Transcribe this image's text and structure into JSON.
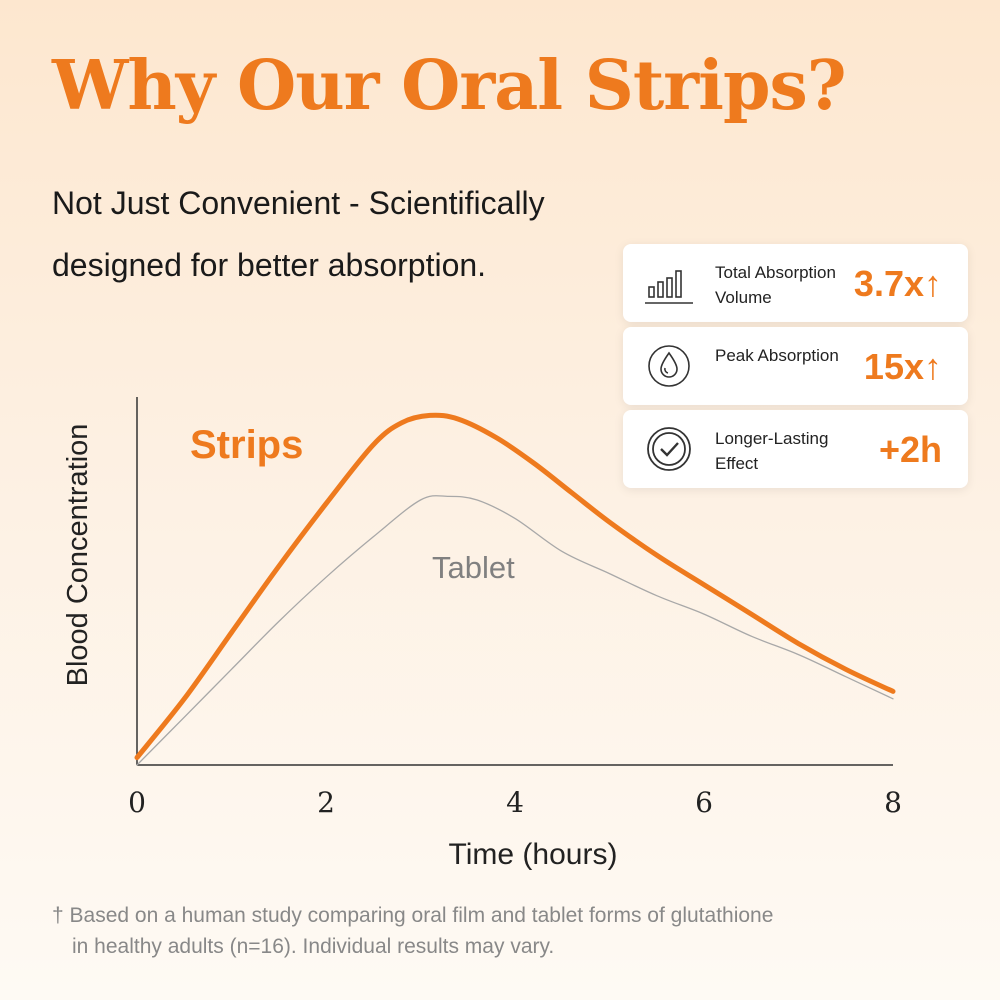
{
  "header": {
    "title": "Why Our Oral Strips?",
    "subtitle": "Not Just Convenient - Scientifically designed for better absorption."
  },
  "stats": [
    {
      "icon": "bar-chart-icon",
      "label": "Total Absorption Volume",
      "value": "3.7x↑"
    },
    {
      "icon": "droplet-icon",
      "label": "Peak Absorption",
      "value": "15x↑"
    },
    {
      "icon": "check-circle-icon",
      "label": "Longer-Lasting Effect",
      "value": "+2h"
    }
  ],
  "colors": {
    "accent": "#ee7a1e",
    "tablet": "#a8a8a8",
    "axis": "#333333"
  },
  "chart_data": {
    "type": "line",
    "xlabel": "Time (hours)",
    "ylabel": "Blood Concentration",
    "xlim": [
      0,
      8
    ],
    "ylim": [
      0,
      1
    ],
    "xticks": [
      0,
      2,
      4,
      6,
      8
    ],
    "yticks": [],
    "series": [
      {
        "name": "Strips",
        "color": "#ee7a1e",
        "x": [
          0,
          0.5,
          1,
          1.5,
          2,
          2.5,
          2.8,
          3.1,
          3.4,
          3.8,
          4.2,
          4.6,
          5,
          5.5,
          6,
          6.5,
          7,
          7.5,
          8
        ],
        "y": [
          0.02,
          0.18,
          0.36,
          0.54,
          0.71,
          0.87,
          0.93,
          0.95,
          0.94,
          0.89,
          0.82,
          0.74,
          0.66,
          0.57,
          0.49,
          0.41,
          0.33,
          0.26,
          0.2
        ]
      },
      {
        "name": "Tablet",
        "color": "#a8a8a8",
        "x": [
          0,
          0.5,
          1,
          1.5,
          2,
          2.5,
          3,
          3.3,
          3.6,
          4,
          4.5,
          5,
          5.5,
          6,
          6.5,
          7,
          7.5,
          8
        ],
        "y": [
          0.0,
          0.13,
          0.26,
          0.39,
          0.51,
          0.62,
          0.72,
          0.73,
          0.72,
          0.67,
          0.58,
          0.52,
          0.46,
          0.41,
          0.35,
          0.3,
          0.24,
          0.18
        ]
      }
    ]
  },
  "footnote": {
    "line1": "† Based on a human study comparing oral film and tablet forms of glutathione",
    "line2": "in healthy adults (n=16). Individual results may vary."
  }
}
